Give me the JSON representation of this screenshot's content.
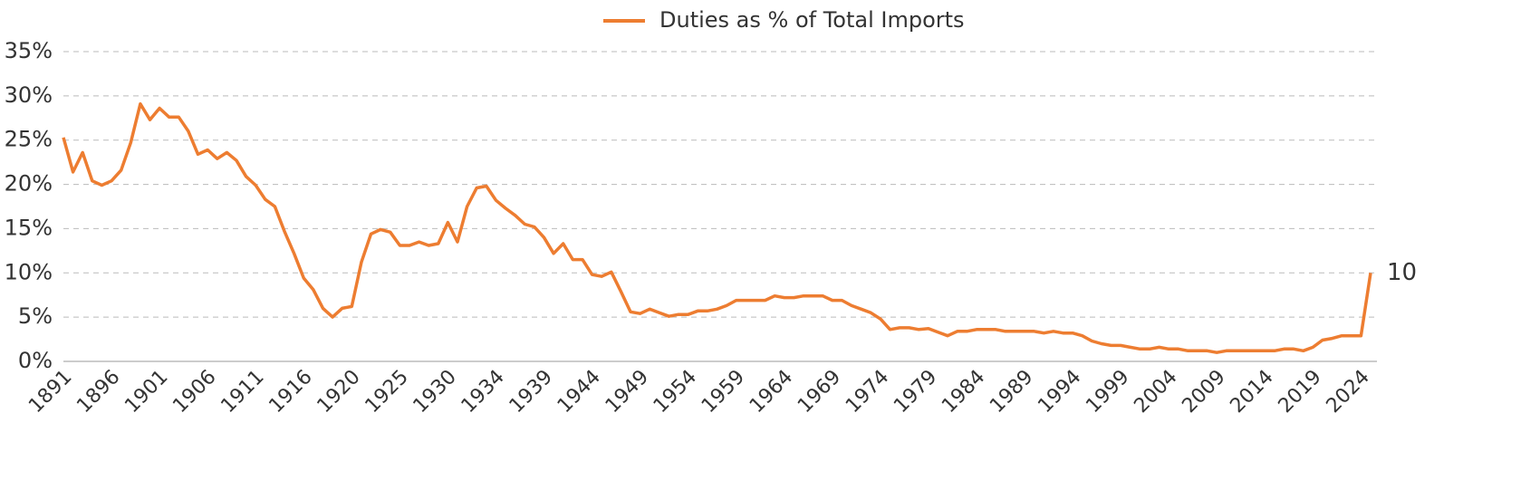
{
  "chart_data": {
    "type": "line",
    "categories": [
      "1891",
      null,
      null,
      null,
      null,
      "1896",
      null,
      null,
      null,
      null,
      "1901",
      null,
      null,
      null,
      null,
      "1906",
      null,
      null,
      null,
      null,
      "1911",
      null,
      null,
      null,
      null,
      "1916",
      null,
      null,
      null,
      null,
      "1920",
      null,
      null,
      null,
      null,
      "1925",
      null,
      null,
      null,
      null,
      "1930",
      null,
      null,
      null,
      null,
      "1934",
      null,
      null,
      null,
      null,
      "1939",
      null,
      null,
      null,
      null,
      "1944",
      null,
      null,
      null,
      null,
      "1949",
      null,
      null,
      null,
      null,
      "1954",
      null,
      null,
      null,
      null,
      "1959",
      null,
      null,
      null,
      null,
      "1964",
      null,
      null,
      null,
      null,
      "1969",
      null,
      null,
      null,
      null,
      "1974",
      null,
      null,
      null,
      null,
      "1979",
      null,
      null,
      null,
      null,
      "1984",
      null,
      null,
      null,
      null,
      "1989",
      null,
      null,
      null,
      null,
      "1994",
      null,
      null,
      null,
      null,
      "1999",
      null,
      null,
      null,
      null,
      "2004",
      null,
      null,
      null,
      null,
      "2009",
      null,
      null,
      null,
      null,
      "2014",
      null,
      null,
      null,
      null,
      "2019",
      null,
      null,
      null,
      null,
      "2024",
      null
    ],
    "series": [
      {
        "name": "Duties as % of Total Imports",
        "color": "#ed7d31",
        "values": [
          25.3,
          21.4,
          23.6,
          20.4,
          19.9,
          20.4,
          21.6,
          24.7,
          29.1,
          27.3,
          28.6,
          27.6,
          27.6,
          26.0,
          23.4,
          23.9,
          22.9,
          23.6,
          22.7,
          20.9,
          19.9,
          18.3,
          17.5,
          14.7,
          12.2,
          9.4,
          8.1,
          6.0,
          5.0,
          6.0,
          6.2,
          11.2,
          14.4,
          14.9,
          14.6,
          13.1,
          13.1,
          13.5,
          13.1,
          13.3,
          15.7,
          13.5,
          17.5,
          19.6,
          19.8,
          18.2,
          17.3,
          16.5,
          15.5,
          15.2,
          14.0,
          12.2,
          13.3,
          11.5,
          11.5,
          9.8,
          9.6,
          10.1,
          7.9,
          5.6,
          5.4,
          5.9,
          5.5,
          5.1,
          5.3,
          5.3,
          5.7,
          5.7,
          5.9,
          6.3,
          6.9,
          6.9,
          6.9,
          6.9,
          7.4,
          7.2,
          7.2,
          7.4,
          7.4,
          7.4,
          6.9,
          6.9,
          6.3,
          5.9,
          5.5,
          4.8,
          3.6,
          3.8,
          3.8,
          3.6,
          3.7,
          3.3,
          2.9,
          3.4,
          3.4,
          3.6,
          3.6,
          3.6,
          3.4,
          3.4,
          3.4,
          3.4,
          3.2,
          3.4,
          3.2,
          3.2,
          2.9,
          2.3,
          2.0,
          1.8,
          1.8,
          1.6,
          1.4,
          1.4,
          1.6,
          1.4,
          1.4,
          1.2,
          1.2,
          1.2,
          1.0,
          1.2,
          1.2,
          1.2,
          1.2,
          1.2,
          1.2,
          1.4,
          1.4,
          1.2,
          1.6,
          2.4,
          2.6,
          2.9,
          2.9,
          2.9,
          10
        ]
      }
    ],
    "ylim": [
      0,
      35
    ],
    "yticks": [
      {
        "value": 0,
        "label": "0%"
      },
      {
        "value": 5,
        "label": "5%"
      },
      {
        "value": 10,
        "label": "10%"
      },
      {
        "value": 15,
        "label": "15%"
      },
      {
        "value": 20,
        "label": "20%"
      },
      {
        "value": 25,
        "label": "25%"
      },
      {
        "value": 30,
        "label": "30%"
      },
      {
        "value": 35,
        "label": "35%"
      }
    ],
    "grid": true,
    "legend": "top"
  }
}
